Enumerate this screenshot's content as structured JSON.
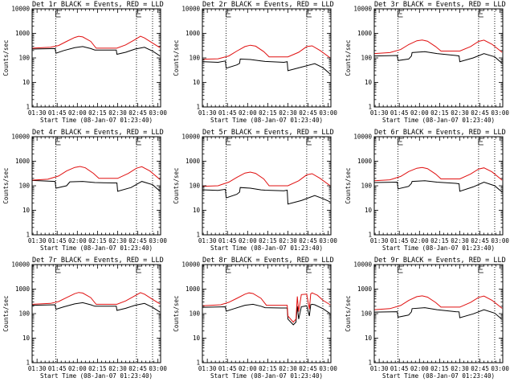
{
  "colors": {
    "events": "#000000",
    "lld": "#e01010",
    "background": "#ffffff"
  },
  "shared": {
    "ylabel": "Counts/sec",
    "xlabel": "Start Time (08-Jan-07 01:23:40)",
    "x_tick_labels": [
      "01:30",
      "01:45",
      "02:00",
      "02:15",
      "02:30",
      "02:45",
      "03:00"
    ],
    "y_tick_labels": [
      "1",
      "10",
      "100",
      "1000",
      "10000"
    ],
    "e_marker": "E"
  },
  "chart_data": [
    {
      "type": "line",
      "title": "Det 1r BLACK = Events, RED = LLD",
      "y_scale": "log",
      "ylim": [
        1,
        10000
      ],
      "xlim_minutes": [
        86.33,
        182.0
      ],
      "x_ticks_minutes": [
        90,
        105,
        120,
        135,
        150,
        165,
        180
      ],
      "vlines_minutes": [
        104,
        164,
        176
      ],
      "series": [
        {
          "name": "Events",
          "color": "#000000",
          "x": [
            86.5,
            103.5,
            104,
            110,
            118,
            124,
            130,
            133,
            145,
            149,
            149.5,
            156,
            163,
            170,
            176,
            181.5
          ],
          "y": [
            230,
            240,
            155,
            200,
            260,
            290,
            240,
            210,
            210,
            210,
            140,
            170,
            230,
            270,
            190,
            120
          ]
        },
        {
          "name": "LLD",
          "color": "#e01010",
          "x": [
            86.5,
            100,
            106,
            112,
            118,
            121,
            124,
            130,
            134,
            149.5,
            156,
            163,
            167,
            170,
            176,
            181.5
          ],
          "y": [
            250,
            270,
            320,
            470,
            680,
            760,
            720,
            470,
            250,
            250,
            340,
            560,
            760,
            650,
            400,
            260
          ]
        }
      ]
    },
    {
      "type": "line",
      "title": "Det 2r BLACK = Events, RED = LLD",
      "y_scale": "log",
      "ylim": [
        1,
        10000
      ],
      "xlim_minutes": [
        86.33,
        182.0
      ],
      "x_ticks_minutes": [
        90,
        105,
        120,
        135,
        150,
        165,
        180
      ],
      "vlines_minutes": [
        104,
        164,
        176
      ],
      "series": [
        {
          "name": "Events",
          "color": "#000000",
          "x": [
            86.5,
            98,
            103.5,
            104,
            112,
            114,
            114.5,
            122,
            130,
            133,
            147,
            149.5,
            150,
            160,
            170,
            176,
            181.5
          ],
          "y": [
            70,
            66,
            75,
            38,
            52,
            60,
            90,
            86,
            75,
            72,
            66,
            70,
            30,
            42,
            58,
            40,
            22
          ]
        },
        {
          "name": "LLD",
          "color": "#e01010",
          "x": [
            86.5,
            98,
            106,
            112,
            118,
            122,
            126,
            132,
            136,
            150,
            158,
            164,
            168,
            174,
            181.5
          ],
          "y": [
            88,
            92,
            120,
            190,
            290,
            330,
            300,
            180,
            110,
            110,
            170,
            290,
            310,
            200,
            100
          ]
        }
      ]
    },
    {
      "type": "line",
      "title": "Det 3r BLACK = Events, RED = LLD",
      "y_scale": "log",
      "ylim": [
        1,
        10000
      ],
      "xlim_minutes": [
        86.33,
        182.0
      ],
      "x_ticks_minutes": [
        90,
        105,
        120,
        135,
        150,
        165,
        180
      ],
      "vlines_minutes": [
        104,
        164,
        176
      ],
      "series": [
        {
          "name": "Events",
          "color": "#000000",
          "x": [
            86.5,
            103.5,
            104,
            112,
            114,
            114.5,
            124,
            133,
            147,
            149.5,
            150,
            160,
            168,
            176,
            181.5
          ],
          "y": [
            120,
            125,
            78,
            90,
            120,
            165,
            180,
            150,
            125,
            120,
            70,
            100,
            150,
            110,
            60
          ]
        },
        {
          "name": "LLD",
          "color": "#e01010",
          "x": [
            86.5,
            98,
            106,
            112,
            118,
            122,
            126,
            132,
            136,
            150,
            158,
            164,
            168,
            174,
            181.5
          ],
          "y": [
            150,
            165,
            220,
            350,
            500,
            540,
            480,
            290,
            190,
            190,
            290,
            470,
            530,
            360,
            170
          ]
        }
      ]
    },
    {
      "type": "line",
      "title": "Det 4r BLACK = Events, RED = LLD",
      "y_scale": "log",
      "ylim": [
        1,
        10000
      ],
      "xlim_minutes": [
        86.33,
        182.0
      ],
      "x_ticks_minutes": [
        90,
        105,
        120,
        135,
        150,
        165,
        180
      ],
      "vlines_minutes": [
        104,
        164,
        176
      ],
      "series": [
        {
          "name": "Events",
          "color": "#000000",
          "x": [
            86.5,
            103.5,
            104,
            112,
            114,
            114.5,
            124,
            133,
            147,
            149.5,
            150,
            160,
            168,
            176,
            181.5
          ],
          "y": [
            165,
            150,
            80,
            100,
            135,
            145,
            150,
            135,
            130,
            130,
            60,
            85,
            150,
            110,
            60
          ]
        },
        {
          "name": "LLD",
          "color": "#e01010",
          "x": [
            86.5,
            98,
            106,
            112,
            118,
            122,
            126,
            132,
            136,
            150,
            158,
            164,
            168,
            174,
            181.5
          ],
          "y": [
            170,
            185,
            250,
            400,
            560,
            610,
            540,
            320,
            200,
            200,
            320,
            520,
            600,
            400,
            180
          ]
        }
      ]
    },
    {
      "type": "line",
      "title": "Det 5r BLACK = Events, RED = LLD",
      "y_scale": "log",
      "ylim": [
        1,
        10000
      ],
      "xlim_minutes": [
        86.33,
        182.0
      ],
      "x_ticks_minutes": [
        90,
        105,
        120,
        135,
        150,
        165,
        180
      ],
      "vlines_minutes": [
        104,
        164,
        176
      ],
      "series": [
        {
          "name": "Events",
          "color": "#000000",
          "x": [
            86.5,
            98,
            103.5,
            104,
            112,
            114,
            114.5,
            122,
            130,
            133,
            147,
            149.5,
            150,
            160,
            170,
            176,
            181.5
          ],
          "y": [
            68,
            65,
            72,
            32,
            45,
            55,
            85,
            80,
            68,
            66,
            62,
            66,
            18,
            25,
            40,
            30,
            22
          ]
        },
        {
          "name": "LLD",
          "color": "#e01010",
          "x": [
            86.5,
            98,
            106,
            112,
            118,
            122,
            126,
            132,
            136,
            150,
            158,
            164,
            168,
            174,
            181.5
          ],
          "y": [
            95,
            100,
            140,
            220,
            330,
            360,
            320,
            190,
            100,
            100,
            160,
            280,
            310,
            200,
            100
          ]
        }
      ]
    },
    {
      "type": "line",
      "title": "Det 6r BLACK = Events, RED = LLD",
      "y_scale": "log",
      "ylim": [
        1,
        10000
      ],
      "xlim_minutes": [
        86.33,
        182.0
      ],
      "x_ticks_minutes": [
        90,
        105,
        120,
        135,
        150,
        165,
        180
      ],
      "vlines_minutes": [
        104,
        164,
        176
      ],
      "series": [
        {
          "name": "Events",
          "color": "#000000",
          "x": [
            86.5,
            103.5,
            104,
            112,
            114,
            114.5,
            124,
            133,
            147,
            149.5,
            150,
            160,
            168,
            176,
            181.5
          ],
          "y": [
            135,
            140,
            75,
            95,
            125,
            150,
            160,
            140,
            125,
            120,
            60,
            90,
            140,
            100,
            55
          ]
        },
        {
          "name": "LLD",
          "color": "#e01010",
          "x": [
            86.5,
            98,
            106,
            112,
            118,
            122,
            126,
            132,
            136,
            150,
            158,
            164,
            168,
            174,
            181.5
          ],
          "y": [
            160,
            175,
            240,
            380,
            520,
            560,
            500,
            300,
            190,
            190,
            300,
            480,
            540,
            370,
            170
          ]
        }
      ]
    },
    {
      "type": "line",
      "title": "Det 7r BLACK = Events, RED = LLD",
      "y_scale": "log",
      "ylim": [
        1,
        10000
      ],
      "xlim_minutes": [
        86.33,
        182.0
      ],
      "x_ticks_minutes": [
        90,
        105,
        120,
        135,
        150,
        165,
        180
      ],
      "vlines_minutes": [
        104,
        164,
        176
      ],
      "series": [
        {
          "name": "Events",
          "color": "#000000",
          "x": [
            86.5,
            103.5,
            104,
            110,
            118,
            124,
            130,
            133,
            145,
            149,
            149.5,
            156,
            163,
            170,
            176,
            181.5
          ],
          "y": [
            220,
            230,
            150,
            190,
            250,
            280,
            230,
            200,
            200,
            200,
            135,
            165,
            220,
            260,
            180,
            115
          ]
        },
        {
          "name": "LLD",
          "color": "#e01010",
          "x": [
            86.5,
            100,
            106,
            112,
            118,
            121,
            124,
            130,
            134,
            149.5,
            156,
            163,
            167,
            170,
            176,
            181.5
          ],
          "y": [
            240,
            260,
            310,
            450,
            650,
            730,
            690,
            450,
            240,
            240,
            330,
            540,
            720,
            620,
            380,
            250
          ]
        }
      ]
    },
    {
      "type": "line",
      "title": "Det 8r BLACK = Events, RED = LLD",
      "y_scale": "log",
      "ylim": [
        1,
        10000
      ],
      "xlim_minutes": [
        86.33,
        182.0
      ],
      "x_ticks_minutes": [
        90,
        105,
        120,
        135,
        150,
        165,
        180
      ],
      "vlines_minutes": [
        104,
        164,
        176
      ],
      "series": [
        {
          "name": "Events",
          "color": "#000000",
          "x": [
            86.5,
            103.5,
            104,
            110,
            118,
            124,
            130,
            133,
            145,
            149.5,
            150,
            154,
            156,
            157,
            158,
            160,
            164,
            166,
            167,
            168,
            170,
            176,
            181.5
          ],
          "y": [
            180,
            190,
            125,
            160,
            220,
            240,
            200,
            175,
            170,
            170,
            60,
            35,
            45,
            200,
            60,
            190,
            210,
            80,
            230,
            240,
            230,
            160,
            100
          ]
        },
        {
          "name": "LLD",
          "color": "#e01010",
          "x": [
            86.5,
            100,
            106,
            112,
            118,
            121,
            124,
            130,
            134,
            149.5,
            150,
            154,
            156,
            157,
            158,
            160,
            164,
            166,
            167,
            168,
            172,
            176,
            181.5
          ],
          "y": [
            210,
            230,
            290,
            420,
            620,
            700,
            660,
            420,
            220,
            220,
            80,
            45,
            60,
            500,
            120,
            600,
            620,
            150,
            640,
            700,
            560,
            350,
            230
          ]
        }
      ]
    },
    {
      "type": "line",
      "title": "Det 9r BLACK = Events, RED = LLD",
      "y_scale": "log",
      "ylim": [
        1,
        10000
      ],
      "xlim_minutes": [
        86.33,
        182.0
      ],
      "x_ticks_minutes": [
        90,
        105,
        120,
        135,
        150,
        165,
        180
      ],
      "vlines_minutes": [
        104,
        164,
        176
      ],
      "series": [
        {
          "name": "Events",
          "color": "#000000",
          "x": [
            86.5,
            103.5,
            104,
            112,
            114,
            114.5,
            124,
            133,
            147,
            149.5,
            150,
            160,
            168,
            176,
            181.5
          ],
          "y": [
            115,
            120,
            72,
            88,
            118,
            160,
            175,
            145,
            120,
            118,
            68,
            98,
            145,
            105,
            58
          ]
        },
        {
          "name": "LLD",
          "color": "#e01010",
          "x": [
            86.5,
            98,
            106,
            112,
            118,
            122,
            126,
            132,
            136,
            150,
            158,
            164,
            168,
            174,
            181.5
          ],
          "y": [
            145,
            160,
            215,
            345,
            490,
            530,
            470,
            285,
            185,
            185,
            285,
            460,
            520,
            350,
            165
          ]
        }
      ]
    }
  ]
}
